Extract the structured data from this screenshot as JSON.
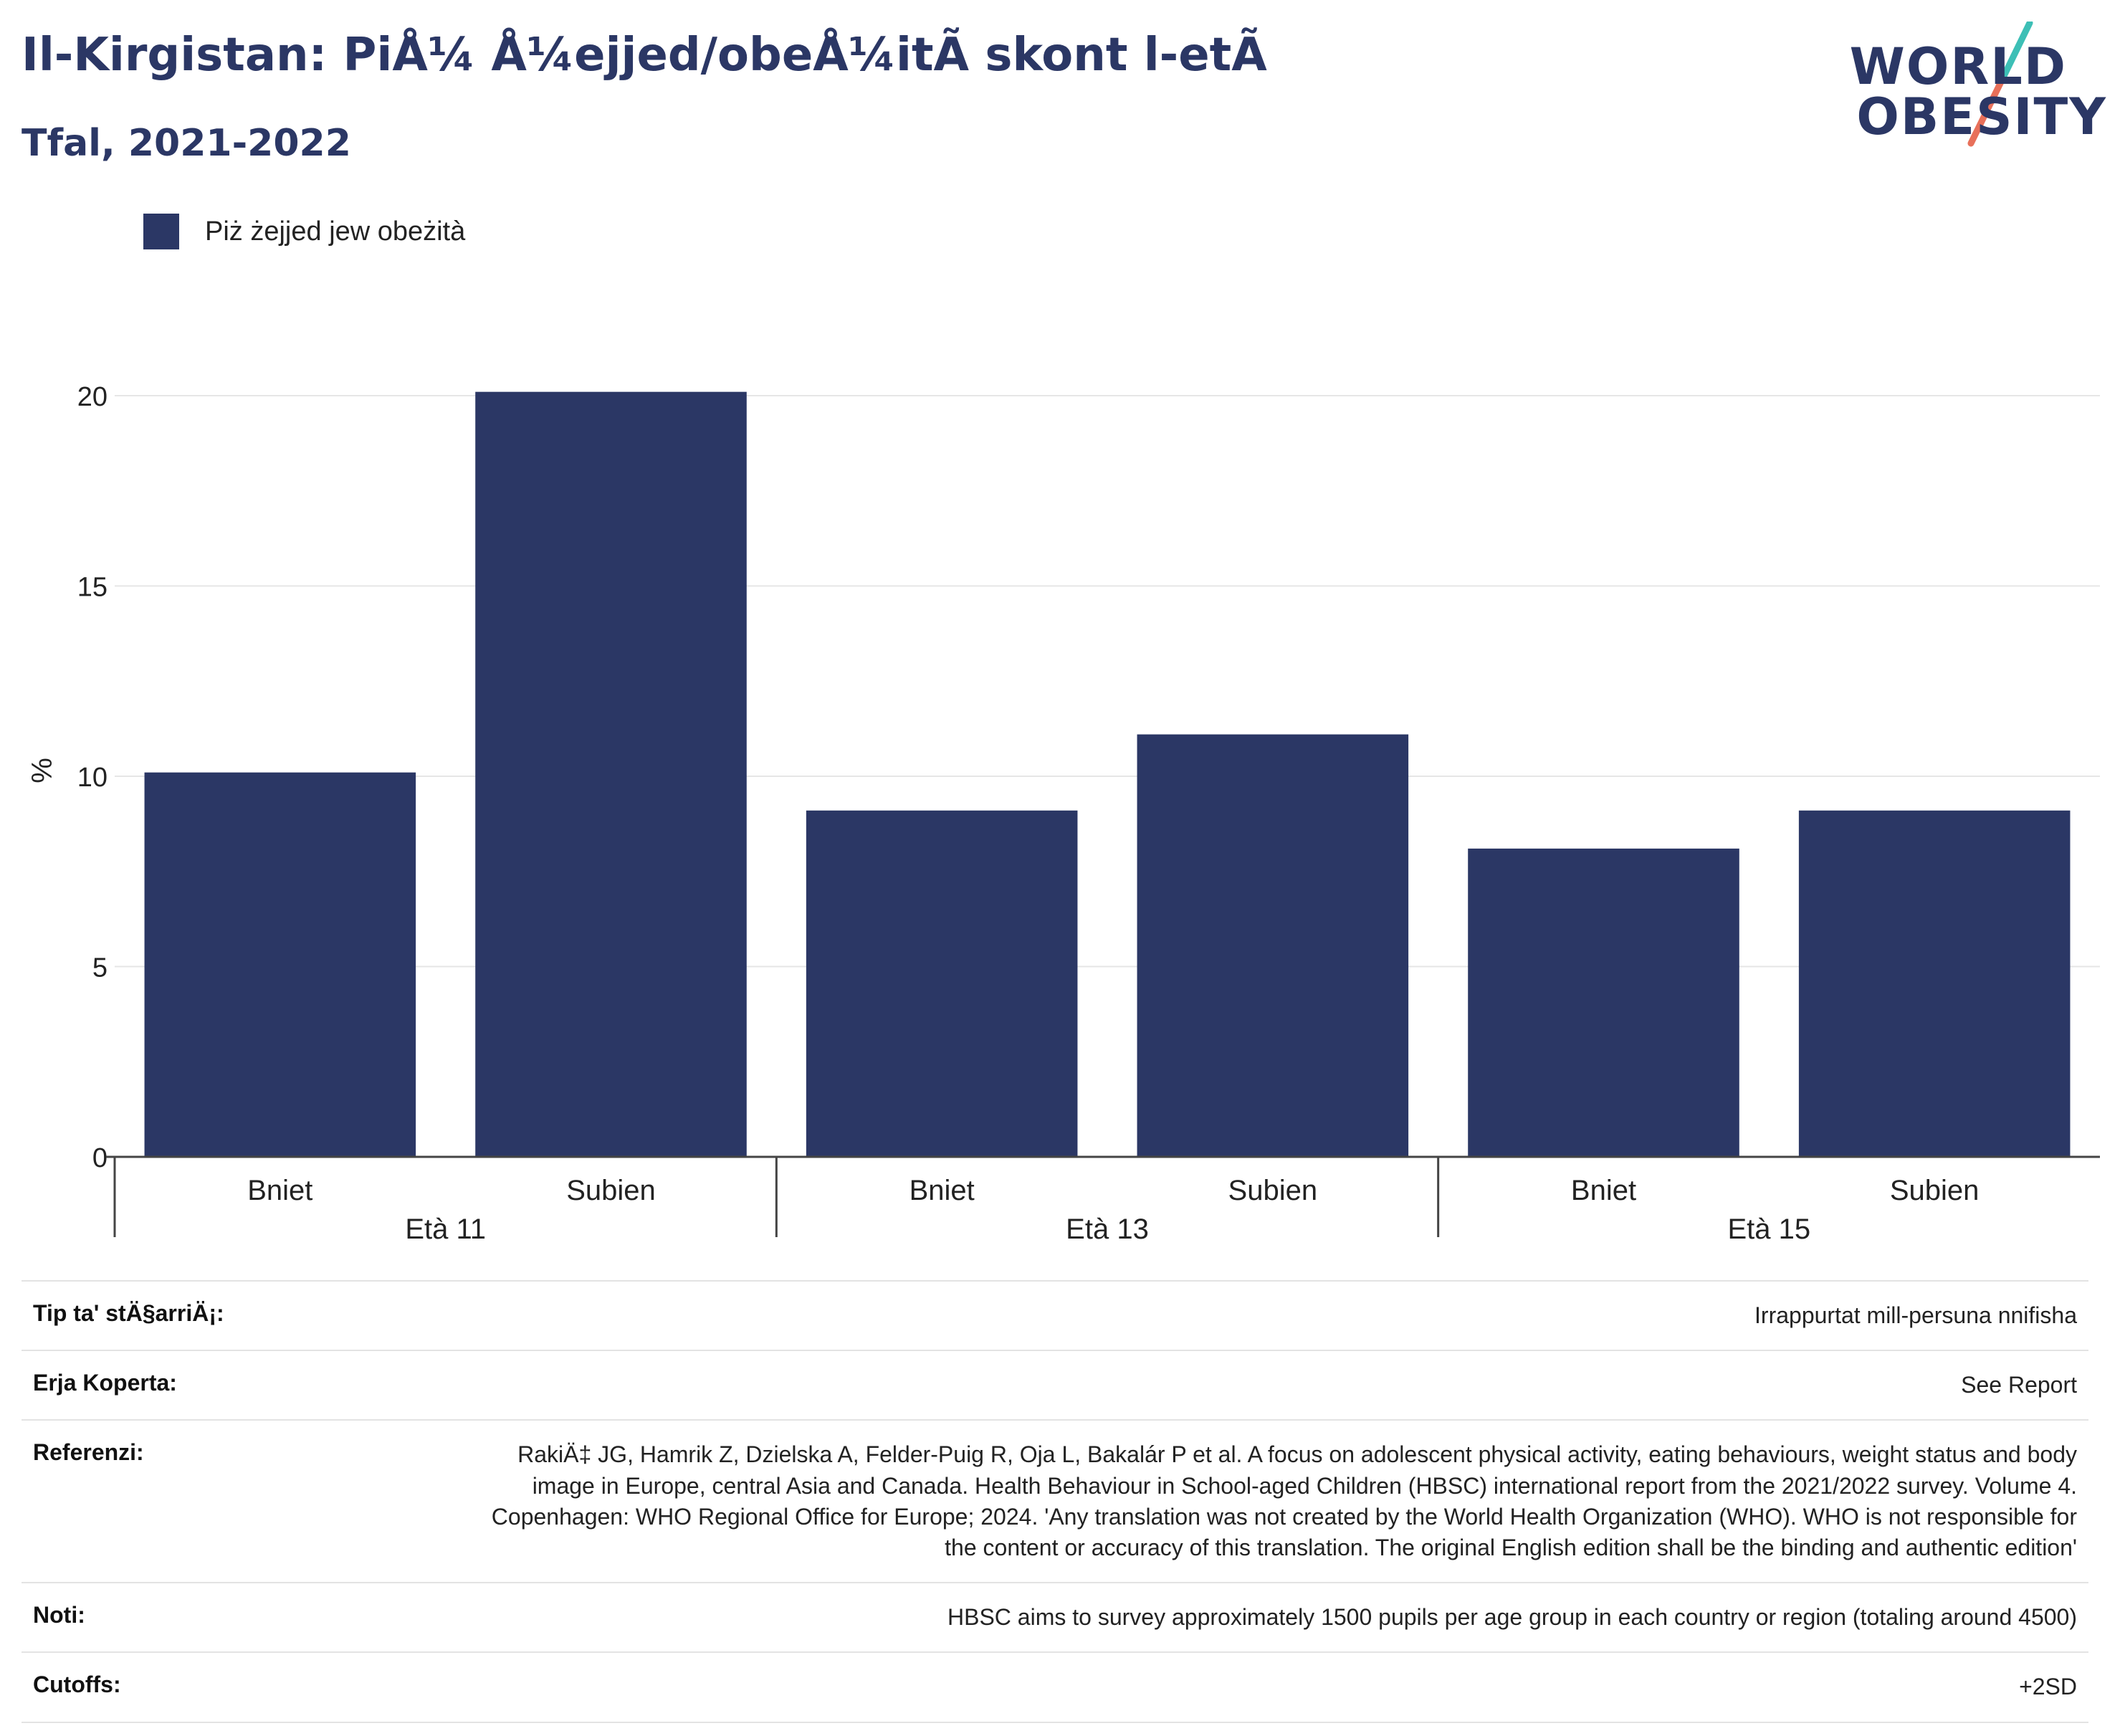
{
  "header": {
    "title": "Il-Kirgistan: PiÅ¼ Å¼ejjed/obeÅ¼itÃ  skont l-etÃ",
    "subtitle": "Tfal, 2021-2022"
  },
  "logo": {
    "line1": "WORLD",
    "line2": "OBESITY",
    "slash_colors": [
      "#3dbfb6",
      "#e8705a"
    ]
  },
  "legend": {
    "label": "Piż żejjed jew obeżità",
    "color": "#2b3765"
  },
  "chart_data": {
    "type": "bar",
    "ylabel": "%",
    "xlabel": "",
    "ylim": [
      0,
      20.5
    ],
    "yticks": [
      0,
      5,
      10,
      15,
      20
    ],
    "grid": true,
    "legend_position": "top-left",
    "groups": [
      "Età 11",
      "Età 13",
      "Età 15"
    ],
    "categories": [
      "Bniet",
      "Subien",
      "Bniet",
      "Subien",
      "Bniet",
      "Subien"
    ],
    "series": [
      {
        "name": "Piż żejjed jew obeżità",
        "color": "#2b3765",
        "values": [
          10.1,
          20.1,
          9.1,
          11.1,
          8.1,
          9.1
        ]
      }
    ]
  },
  "info_table": [
    {
      "label": "Tip ta' stÄ§arriÄ¡:",
      "value": "Irrappurtat mill-persuna nnifisha"
    },
    {
      "label": "Erja Koperta:",
      "value": "See Report"
    },
    {
      "label": "Referenzi:",
      "value": "RakiÄ‡ JG, Hamrik Z, Dzielska A, Felder-Puig R, Oja L, Bakalár P et al. A focus on adolescent physical activity, eating behaviours, weight status and body image in Europe, central Asia and Canada. Health Behaviour in School-aged Children (HBSC) international report from the 2021/2022 survey. Volume 4. Copenhagen: WHO Regional Office for Europe; 2024. 'Any translation was not created by the World Health Organization (WHO). WHO is not responsible for the content or accuracy of this translation. The original English edition shall be the binding and authentic edition'"
    },
    {
      "label": "Noti:",
      "value": "HBSC aims to survey approximately 1500 pupils per age group in each country or region (totaling around 4500)"
    },
    {
      "label": "Cutoffs:",
      "value": "+2SD"
    }
  ]
}
